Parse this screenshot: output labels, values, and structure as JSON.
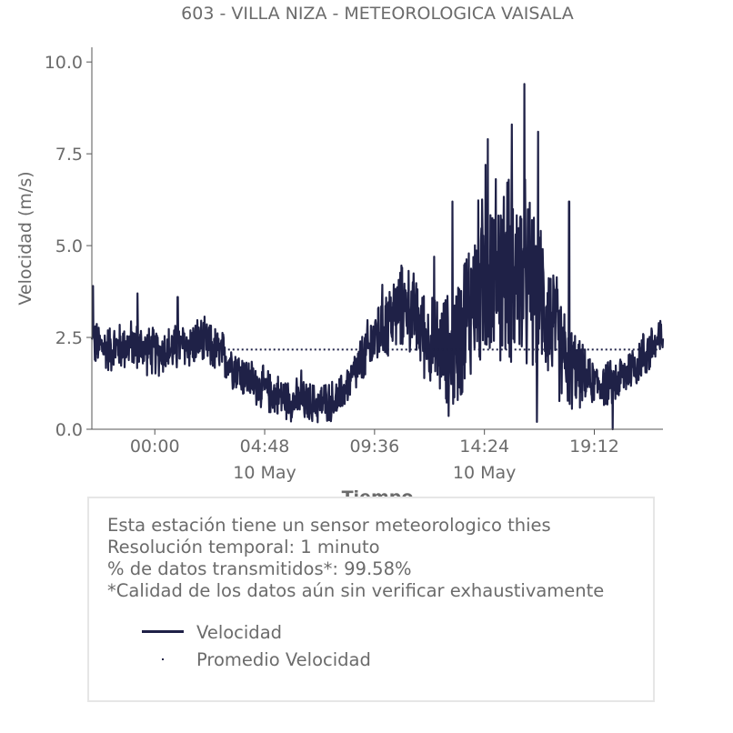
{
  "chart_data": {
    "type": "line",
    "title": "603 - VILLA NIZA - METEOROLOGICA VAISALA",
    "ylabel": "Velocidad (m/s)",
    "xlabel": "Tiempo",
    "ylim": [
      0,
      10.4
    ],
    "xlim_hours": [
      -2.75,
      22.2
    ],
    "yticks": [
      "0.0",
      "2.5",
      "5.0",
      "7.5",
      "10.0"
    ],
    "ytick_values": [
      0,
      2.5,
      5.0,
      7.5,
      10.0
    ],
    "xticks": [
      {
        "hour": 0,
        "label": "00:00",
        "sub": ""
      },
      {
        "hour": 4.8,
        "label": "04:48",
        "sub": "10 May"
      },
      {
        "hour": 9.6,
        "label": "09:36",
        "sub": ""
      },
      {
        "hour": 14.4,
        "label": "14:24",
        "sub": "10 May"
      },
      {
        "hour": 19.2,
        "label": "19:12",
        "sub": ""
      }
    ],
    "series": [
      {
        "name": "Velocidad",
        "color": "#1f2147",
        "anchors": [
          {
            "hour": -2.75,
            "value": 2.3
          },
          {
            "hour": -2.0,
            "value": 2.2
          },
          {
            "hour": -1.0,
            "value": 2.3
          },
          {
            "hour": 0.0,
            "value": 2.1
          },
          {
            "hour": 1.0,
            "value": 2.2
          },
          {
            "hour": 2.0,
            "value": 2.4
          },
          {
            "hour": 3.0,
            "value": 2.0
          },
          {
            "hour": 4.0,
            "value": 1.4
          },
          {
            "hour": 5.0,
            "value": 1.0
          },
          {
            "hour": 6.0,
            "value": 0.8
          },
          {
            "hour": 7.0,
            "value": 0.7
          },
          {
            "hour": 8.0,
            "value": 0.8
          },
          {
            "hour": 9.0,
            "value": 1.8
          },
          {
            "hour": 10.0,
            "value": 2.9
          },
          {
            "hour": 11.0,
            "value": 3.4
          },
          {
            "hour": 12.0,
            "value": 2.4
          },
          {
            "hour": 13.0,
            "value": 2.0
          },
          {
            "hour": 14.0,
            "value": 3.8
          },
          {
            "hour": 15.0,
            "value": 4.4
          },
          {
            "hour": 16.0,
            "value": 4.2
          },
          {
            "hour": 17.0,
            "value": 3.5
          },
          {
            "hour": 18.0,
            "value": 1.8
          },
          {
            "hour": 19.0,
            "value": 1.3
          },
          {
            "hour": 20.0,
            "value": 1.2
          },
          {
            "hour": 21.0,
            "value": 1.8
          },
          {
            "hour": 22.2,
            "value": 2.5
          }
        ],
        "noise": [
          {
            "hour": -2.75,
            "amp": 0.55
          },
          {
            "hour": 3.0,
            "amp": 0.55
          },
          {
            "hour": 4.0,
            "amp": 0.5
          },
          {
            "hour": 8.5,
            "amp": 0.45
          },
          {
            "hour": 10.0,
            "amp": 0.9
          },
          {
            "hour": 12.0,
            "amp": 1.0
          },
          {
            "hour": 14.0,
            "amp": 1.9
          },
          {
            "hour": 16.0,
            "amp": 2.3
          },
          {
            "hour": 17.5,
            "amp": 1.4
          },
          {
            "hour": 19.0,
            "amp": 0.5
          },
          {
            "hour": 22.2,
            "amp": 0.6
          }
        ],
        "peaks": [
          {
            "hour": -2.7,
            "value": 3.9
          },
          {
            "hour": -0.75,
            "value": 3.7
          },
          {
            "hour": 1.0,
            "value": 3.6
          },
          {
            "hour": 6.4,
            "value": 1.6
          },
          {
            "hour": 10.8,
            "value": 4.4
          },
          {
            "hour": 12.2,
            "value": 4.7
          },
          {
            "hour": 13.0,
            "value": 6.2
          },
          {
            "hour": 14.45,
            "value": 7.2
          },
          {
            "hour": 14.55,
            "value": 7.9
          },
          {
            "hour": 15.6,
            "value": 8.3
          },
          {
            "hour": 16.15,
            "value": 9.4
          },
          {
            "hour": 16.75,
            "value": 8.1
          },
          {
            "hour": 18.1,
            "value": 6.2
          },
          {
            "hour": 16.7,
            "value": 0.2
          },
          {
            "hour": 20.0,
            "value": 0.0
          }
        ]
      },
      {
        "name": "Promedio Velocidad",
        "color": "#1f2147",
        "style": "dotted",
        "values": [
          {
            "hour": 3.0,
            "value": 2.17
          },
          {
            "hour": 22.0,
            "value": 2.17
          }
        ]
      }
    ],
    "legend_placement": "bottom"
  },
  "info": {
    "lines": [
      "Esta estación tiene un sensor meteorologico thies",
      "Resolución temporal: 1 minuto",
      "% de datos transmitidos*: 99.58%",
      "*Calidad de los datos aún sin verificar exhaustivamente"
    ],
    "legend": [
      {
        "label": "Velocidad",
        "kind": "line"
      },
      {
        "label": "Promedio Velocidad",
        "kind": "dot"
      }
    ]
  }
}
